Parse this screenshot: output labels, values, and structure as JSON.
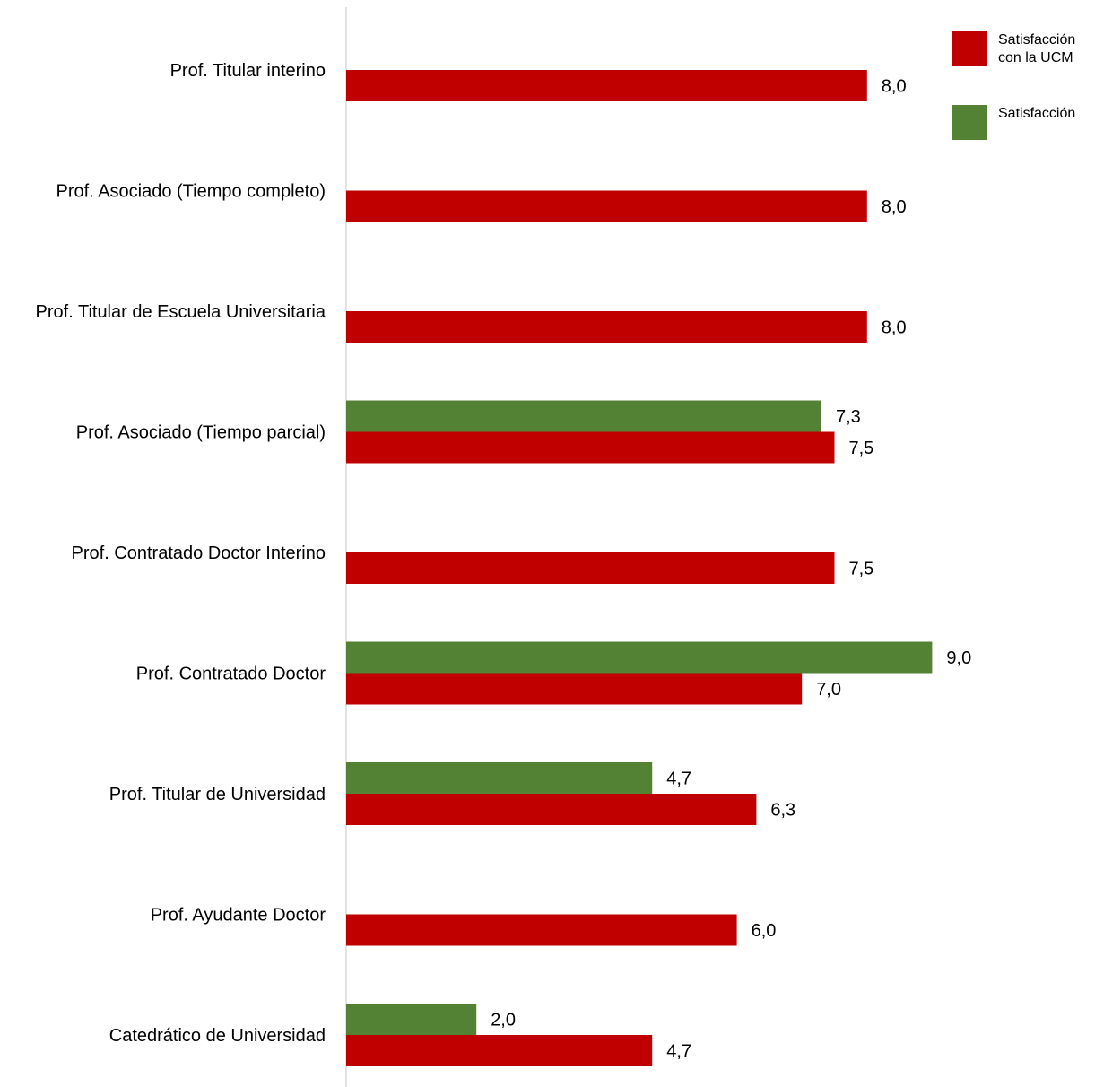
{
  "chart_data": {
    "type": "bar",
    "orientation": "horizontal",
    "categories": [
      "Prof. Titular interino",
      "Prof. Asociado (Tiempo completo)",
      "Prof. Titular de Escuela Universitaria",
      "Prof. Asociado (Tiempo parcial)",
      "Prof. Contratado Doctor Interino",
      "Prof. Contratado Doctor",
      "Prof. Titular de Universidad",
      "Prof. Ayudante Doctor",
      "Catedrático de Universidad"
    ],
    "series": [
      {
        "name": "Satisfacción",
        "color": "#548235",
        "values": [
          null,
          null,
          null,
          7.3,
          null,
          9.0,
          4.7,
          null,
          2.0
        ],
        "labels": [
          "",
          "",
          "",
          "7,3",
          "",
          "9,0",
          "4,7",
          "",
          "2,0"
        ]
      },
      {
        "name": "Satisfacción con la UCM",
        "color": "#C00000",
        "values": [
          8.0,
          8.0,
          8.0,
          7.5,
          7.5,
          7.0,
          6.3,
          6.0,
          4.7
        ],
        "labels": [
          "8,0",
          "8,0",
          "8,0",
          "7,5",
          "7,5",
          "7,0",
          "6,3",
          "6,0",
          "4,7"
        ]
      }
    ],
    "xlim": [
      0,
      10
    ],
    "grid": false,
    "legend": {
      "position": "top-right",
      "entries": [
        {
          "lines": [
            "Satisfacción",
            "con la UCM"
          ],
          "color": "#C00000"
        },
        {
          "lines": [
            "Satisfacción"
          ],
          "color": "#548235"
        }
      ]
    }
  }
}
